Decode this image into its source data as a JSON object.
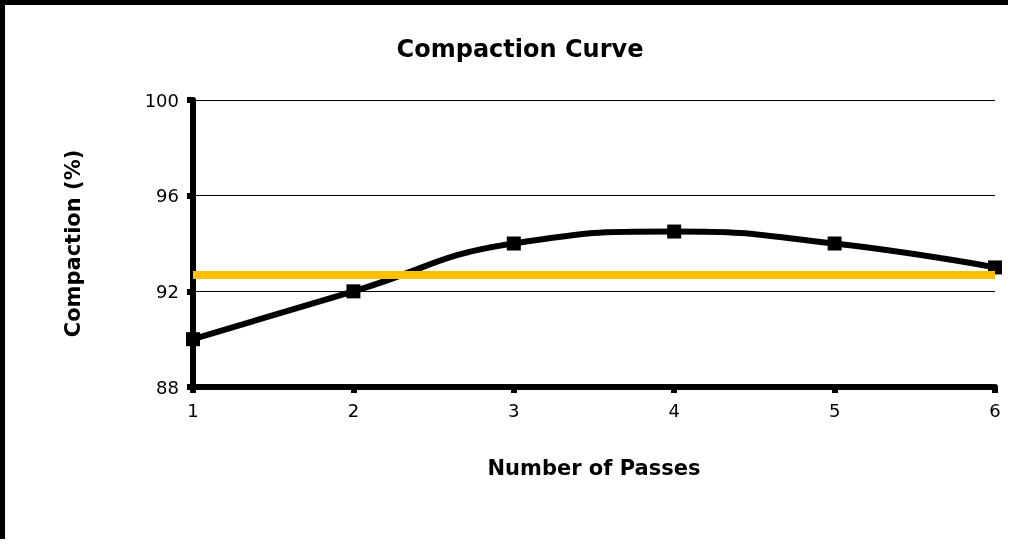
{
  "chart_data": {
    "type": "line",
    "title": "Compaction Curve",
    "xlabel": "Number of Passes",
    "ylabel": "Compaction (%)",
    "x": [
      1,
      2,
      3,
      4,
      5,
      6
    ],
    "series": [
      {
        "color": "#000000",
        "values": [
          90,
          92,
          94,
          94.5,
          94,
          93
        ]
      }
    ],
    "xlim": [
      1,
      6
    ],
    "xticks": [
      1,
      2,
      3,
      4,
      5,
      6
    ],
    "ylim": [
      88,
      100
    ],
    "yticks": [
      88,
      92,
      96,
      100
    ],
    "grid": "y",
    "marker": "square",
    "line_style": "solid",
    "ref_lines": [
      {
        "axis": "y",
        "value": 92.7,
        "color": "#ffc000",
        "line_style": "solid"
      }
    ]
  }
}
